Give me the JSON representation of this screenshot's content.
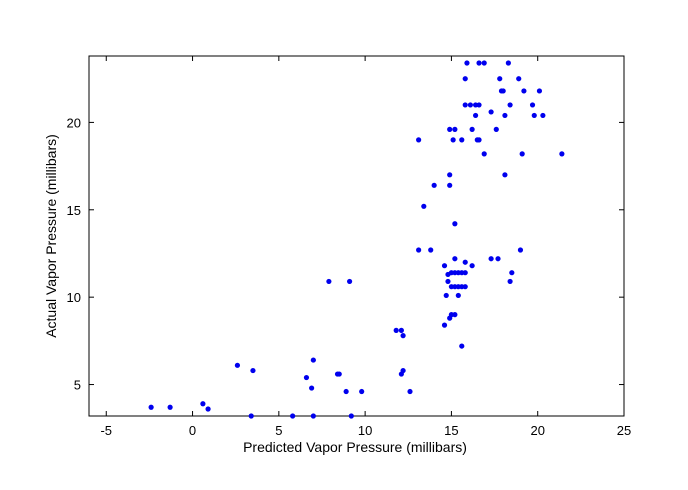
{
  "chart_data": {
    "type": "scatter",
    "xlabel": "Predicted Vapor Pressure (millibars)",
    "ylabel": "Actual Vapor Pressure (millibars)",
    "xlim": [
      -6,
      25
    ],
    "ylim": [
      3.2,
      23.8
    ],
    "xticks": [
      -5,
      0,
      5,
      10,
      15,
      20,
      25
    ],
    "yticks": [
      5,
      10,
      15,
      20
    ],
    "grid": false,
    "legend": "none",
    "marker_color": "#0000ee",
    "series": [
      {
        "points": [
          [
            -2.4,
            3.7
          ],
          [
            -1.3,
            3.7
          ],
          [
            0.6,
            3.9
          ],
          [
            0.9,
            3.6
          ],
          [
            2.6,
            6.1
          ],
          [
            3.5,
            5.8
          ],
          [
            3.4,
            3.2
          ],
          [
            5.8,
            3.2
          ],
          [
            7.0,
            3.2
          ],
          [
            9.2,
            3.2
          ],
          [
            6.6,
            5.4
          ],
          [
            6.9,
            4.8
          ],
          [
            7.0,
            6.4
          ],
          [
            8.4,
            5.6
          ],
          [
            8.5,
            5.6
          ],
          [
            8.9,
            4.6
          ],
          [
            9.8,
            4.6
          ],
          [
            7.9,
            10.9
          ],
          [
            9.1,
            10.9
          ],
          [
            11.8,
            8.1
          ],
          [
            12.1,
            8.1
          ],
          [
            12.2,
            7.8
          ],
          [
            12.1,
            5.6
          ],
          [
            12.2,
            5.8
          ],
          [
            12.6,
            4.6
          ],
          [
            13.1,
            19.0
          ],
          [
            13.1,
            12.7
          ],
          [
            13.4,
            15.2
          ],
          [
            13.8,
            12.7
          ],
          [
            14.0,
            16.4
          ],
          [
            14.6,
            11.8
          ],
          [
            14.6,
            8.4
          ],
          [
            14.7,
            10.1
          ],
          [
            14.8,
            10.9
          ],
          [
            14.9,
            8.8
          ],
          [
            15.0,
            9.0
          ],
          [
            15.2,
            9.0
          ],
          [
            14.8,
            11.3
          ],
          [
            15.0,
            11.4
          ],
          [
            15.2,
            11.4
          ],
          [
            15.4,
            11.4
          ],
          [
            15.6,
            11.4
          ],
          [
            15.8,
            11.4
          ],
          [
            15.0,
            10.6
          ],
          [
            15.2,
            10.6
          ],
          [
            15.4,
            10.6
          ],
          [
            15.6,
            10.6
          ],
          [
            15.8,
            10.6
          ],
          [
            15.4,
            10.1
          ],
          [
            15.2,
            12.2
          ],
          [
            15.8,
            12.0
          ],
          [
            16.2,
            11.8
          ],
          [
            15.6,
            7.2
          ],
          [
            15.2,
            14.2
          ],
          [
            14.9,
            17.0
          ],
          [
            14.9,
            16.4
          ],
          [
            14.9,
            19.6
          ],
          [
            15.2,
            19.6
          ],
          [
            15.6,
            19.0
          ],
          [
            15.1,
            19.0
          ],
          [
            15.8,
            21.0
          ],
          [
            16.1,
            21.0
          ],
          [
            16.2,
            19.6
          ],
          [
            16.4,
            20.4
          ],
          [
            16.4,
            21.0
          ],
          [
            16.5,
            19.0
          ],
          [
            16.6,
            21.0
          ],
          [
            16.6,
            19.0
          ],
          [
            16.9,
            18.2
          ],
          [
            15.8,
            22.5
          ],
          [
            15.9,
            23.4
          ],
          [
            16.6,
            23.4
          ],
          [
            16.9,
            23.4
          ],
          [
            17.3,
            20.6
          ],
          [
            17.6,
            19.6
          ],
          [
            17.8,
            22.5
          ],
          [
            17.9,
            21.8
          ],
          [
            18.0,
            21.8
          ],
          [
            18.1,
            20.4
          ],
          [
            18.1,
            17.0
          ],
          [
            18.3,
            23.4
          ],
          [
            18.4,
            21.0
          ],
          [
            18.9,
            22.5
          ],
          [
            19.1,
            18.2
          ],
          [
            19.2,
            21.8
          ],
          [
            19.7,
            21.0
          ],
          [
            19.8,
            20.4
          ],
          [
            20.1,
            21.8
          ],
          [
            20.3,
            20.4
          ],
          [
            21.4,
            18.2
          ],
          [
            17.3,
            12.2
          ],
          [
            17.7,
            12.2
          ],
          [
            18.4,
            10.9
          ],
          [
            18.5,
            11.4
          ],
          [
            19.0,
            12.7
          ]
        ]
      }
    ]
  }
}
